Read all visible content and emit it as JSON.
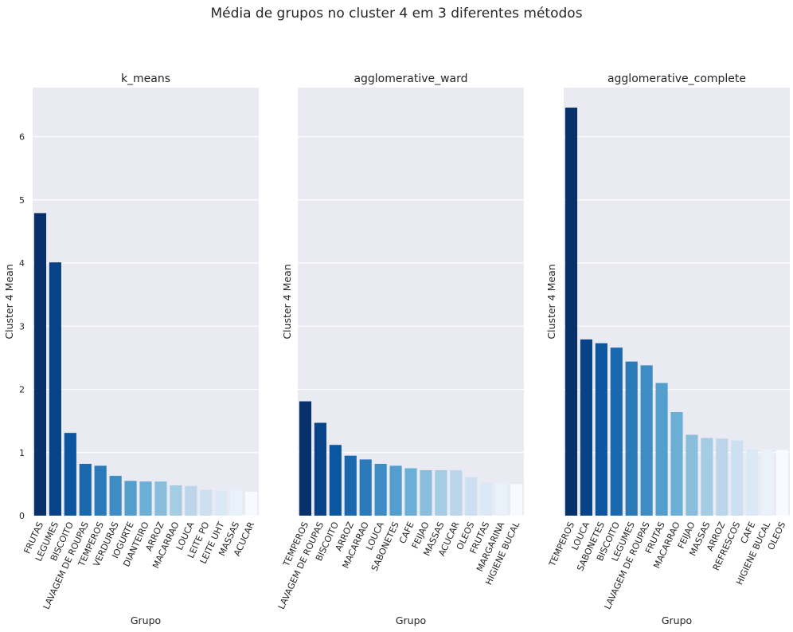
{
  "figure_title": "Média de grupos no cluster 4 em 3 diferentes métodos",
  "chart_data": [
    {
      "type": "bar",
      "title": "k_means",
      "xlabel": "Grupo",
      "ylabel": "Cluster 4 Mean",
      "ylim": [
        0,
        6.8
      ],
      "yticks": [
        0,
        1,
        2,
        3,
        4,
        5,
        6
      ],
      "grid": true,
      "palette": "Blues_r",
      "categories": [
        "FRUTAS",
        "LEGUMES",
        "BISCOITO",
        "LAVAGEM DE ROUPAS",
        "TEMPEROS",
        "VERDURAS",
        "IOGURTE",
        "DIANTEIRO",
        "ARROZ",
        "MACARRAO",
        "LOUCA",
        "LEITE PO",
        "LEITE UHT",
        "MASSAS",
        "ACUCAR"
      ],
      "values": [
        4.79,
        4.01,
        1.31,
        0.82,
        0.79,
        0.63,
        0.55,
        0.54,
        0.54,
        0.48,
        0.47,
        0.41,
        0.4,
        0.4,
        0.38
      ]
    },
    {
      "type": "bar",
      "title": "agglomerative_ward",
      "xlabel": "Grupo",
      "ylabel": "Cluster 4 Mean",
      "ylim": [
        0,
        6.8
      ],
      "grid": true,
      "palette": "Blues_r",
      "categories": [
        "TEMPEROS",
        "LAVAGEM DE ROUPAS",
        "BISCOITO",
        "ARROZ",
        "MACARRAO",
        "LOUCA",
        "SABONETES",
        "CAFE",
        "FEIJAO",
        "MASSAS",
        "ACUCAR",
        "OLEOS",
        "FRUTAS",
        "MARGARINA",
        "HIGIENE BUCAL"
      ],
      "values": [
        1.81,
        1.47,
        1.12,
        0.95,
        0.89,
        0.82,
        0.79,
        0.75,
        0.72,
        0.72,
        0.72,
        0.61,
        0.52,
        0.51,
        0.5
      ]
    },
    {
      "type": "bar",
      "title": "agglomerative_complete",
      "xlabel": "Grupo",
      "ylabel": "Cluster 4 Mean",
      "ylim": [
        0,
        6.8
      ],
      "grid": true,
      "palette": "Blues_r",
      "categories": [
        "TEMPEROS",
        "LOUCA",
        "SABONETES",
        "BISCOITO",
        "LEGUMES",
        "LAVAGEM DE ROUPAS",
        "FRUTAS",
        "MACARRAO",
        "FEIJAO",
        "MASSAS",
        "ARROZ",
        "REFRESCOS",
        "CAFE",
        "HIGIENE BUCAL",
        "OLEOS"
      ],
      "values": [
        6.46,
        2.79,
        2.73,
        2.66,
        2.44,
        2.38,
        2.1,
        1.64,
        1.28,
        1.23,
        1.22,
        1.19,
        1.05,
        1.05,
        1.04
      ]
    }
  ]
}
